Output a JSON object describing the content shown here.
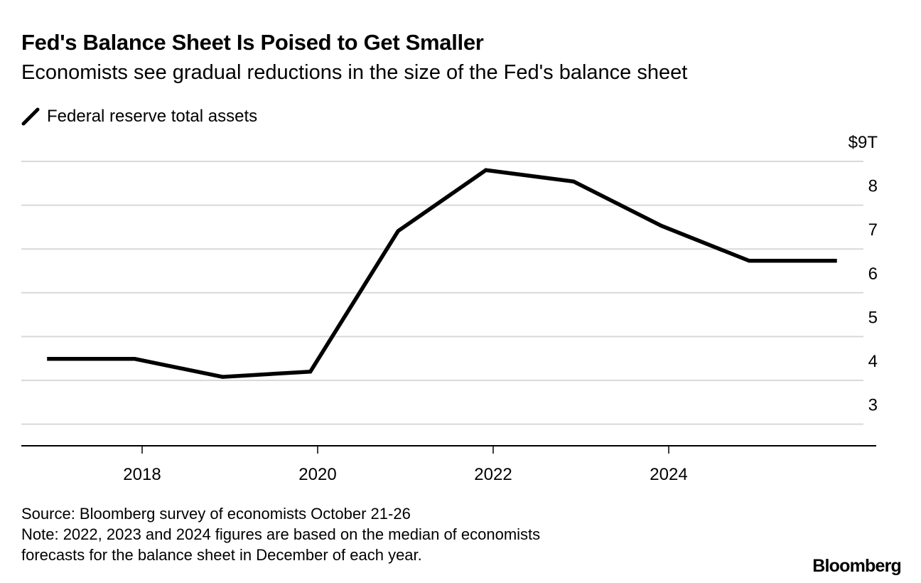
{
  "title": "Fed's Balance Sheet Is Poised to Get Smaller",
  "subtitle": "Economists see gradual reductions in the size of the Fed's balance sheet",
  "footer": {
    "source": "Source: Bloomberg survey of economists October 21-26",
    "note_line1": "Note: 2022, 2023 and 2024 figures are based on the median of economists",
    "note_line2": "forecasts for the balance sheet in December of each year."
  },
  "logo": "Bloomberg",
  "chart_data": {
    "type": "line",
    "title": "Fed's Balance Sheet Is Poised to Get Smaller",
    "subtitle": "Economists see gradual reductions in the size of the Fed's balance sheet",
    "xlabel": "",
    "ylabel": "",
    "legend": "top-left",
    "grid": true,
    "y_axis_side": "right",
    "ylim": [
      2.5,
      9
    ],
    "xlim": [
      "2016-08",
      "2026-05"
    ],
    "y_ticks": [
      {
        "value": 9,
        "label": "$9T"
      },
      {
        "value": 8,
        "label": "8"
      },
      {
        "value": 7,
        "label": "7"
      },
      {
        "value": 6,
        "label": "6"
      },
      {
        "value": 5,
        "label": "5"
      },
      {
        "value": 4,
        "label": "4"
      },
      {
        "value": 3,
        "label": "3"
      }
    ],
    "x_ticks": [
      "2018",
      "2020",
      "2022",
      "2024"
    ],
    "line_color": "#000000",
    "grid_color": "#d9d9d9",
    "series": [
      {
        "name": "Federal reserve total assets",
        "x": [
          "2016-12",
          "2017-12",
          "2018-12",
          "2019-12",
          "2020-12",
          "2021-12",
          "2022-12",
          "2023-12",
          "2024-12",
          "2025-12"
        ],
        "values": [
          4.49,
          4.49,
          4.08,
          4.2,
          7.41,
          8.8,
          8.54,
          7.53,
          6.73,
          6.73
        ]
      }
    ]
  }
}
